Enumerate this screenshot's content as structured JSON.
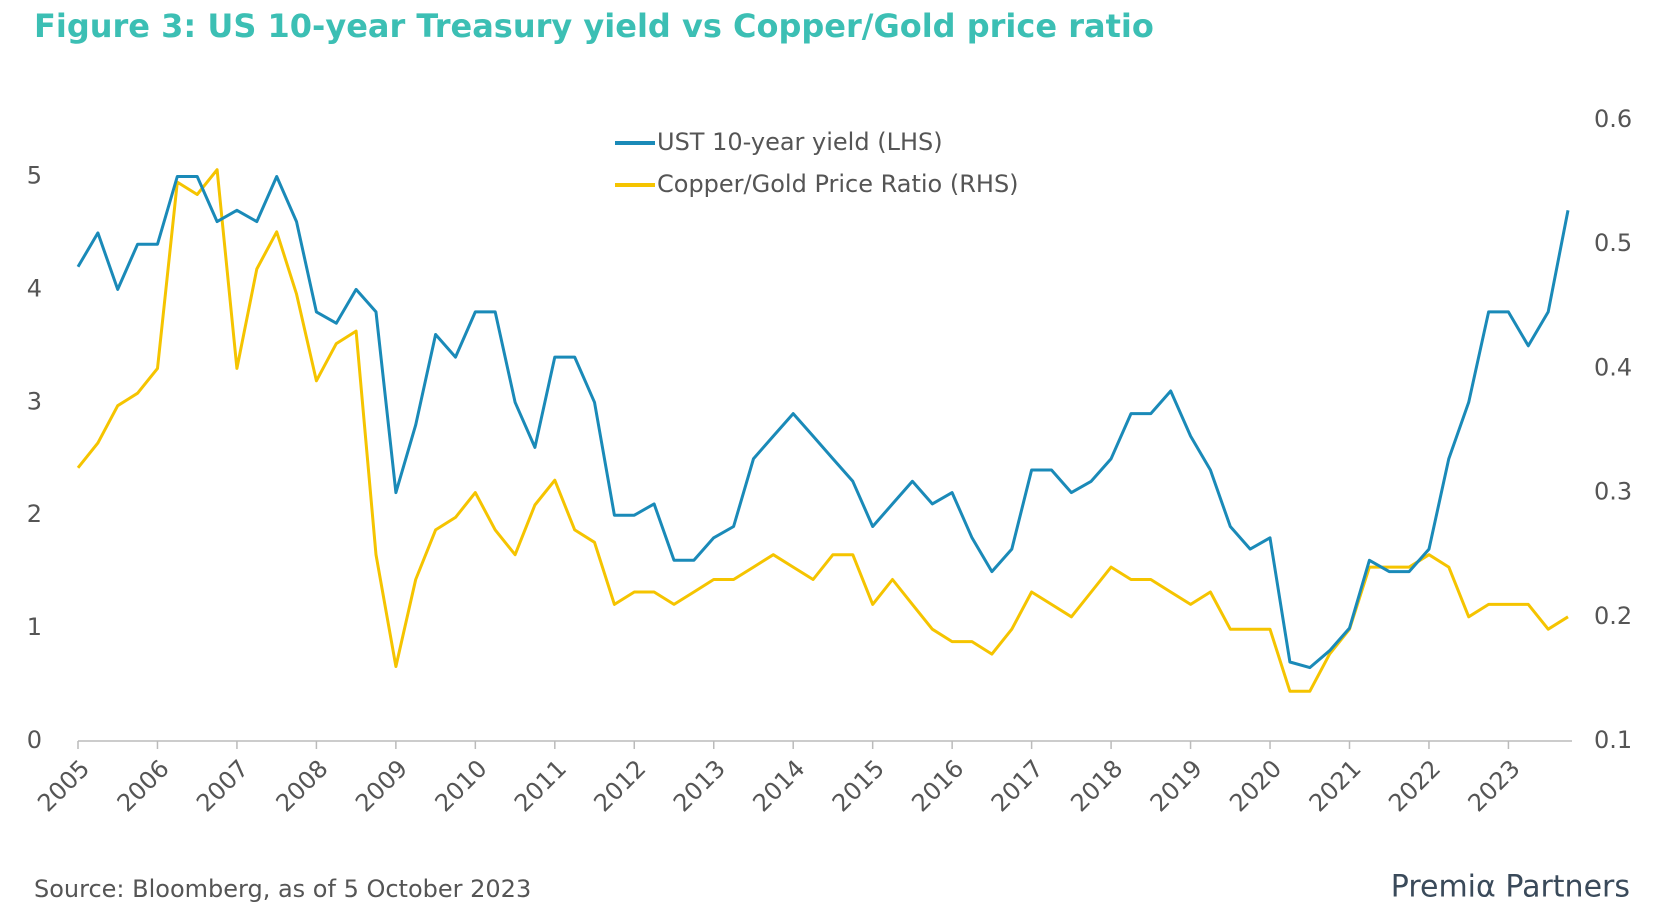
{
  "chart_data": {
    "type": "line",
    "title": "Figure 3: US 10-year Treasury yield vs Copper/Gold price ratio",
    "source": "Source: Bloomberg, as of 5 October 2023",
    "logo": "Premiα Partners",
    "legend": "upper center",
    "x": [
      2005.0,
      2005.25,
      2005.5,
      2005.75,
      2006.0,
      2006.25,
      2006.5,
      2006.75,
      2007.0,
      2007.25,
      2007.5,
      2007.75,
      2008.0,
      2008.25,
      2008.5,
      2008.75,
      2009.0,
      2009.25,
      2009.5,
      2009.75,
      2010.0,
      2010.25,
      2010.5,
      2010.75,
      2011.0,
      2011.25,
      2011.5,
      2011.75,
      2012.0,
      2012.25,
      2012.5,
      2012.75,
      2013.0,
      2013.25,
      2013.5,
      2013.75,
      2014.0,
      2014.25,
      2014.5,
      2014.75,
      2015.0,
      2015.25,
      2015.5,
      2015.75,
      2016.0,
      2016.25,
      2016.5,
      2016.75,
      2017.0,
      2017.25,
      2017.5,
      2017.75,
      2018.0,
      2018.25,
      2018.5,
      2018.75,
      2019.0,
      2019.25,
      2019.5,
      2019.75,
      2020.0,
      2020.25,
      2020.5,
      2020.75,
      2021.0,
      2021.25,
      2021.5,
      2021.75,
      2022.0,
      2022.25,
      2022.5,
      2022.75,
      2023.0,
      2023.25,
      2023.5,
      2023.75
    ],
    "xlim": [
      2005,
      2023.8
    ],
    "xticks": [
      2005,
      2006,
      2007,
      2008,
      2009,
      2010,
      2011,
      2012,
      2013,
      2014,
      2015,
      2016,
      2017,
      2018,
      2019,
      2020,
      2021,
      2022,
      2023
    ],
    "ylim": [
      0,
      5.5
    ],
    "yticks": [
      0,
      1,
      2,
      3,
      4,
      5
    ],
    "y2lim": [
      0.1,
      0.6
    ],
    "y2ticks": [
      0.1,
      0.2,
      0.3,
      0.4,
      0.5,
      0.6
    ],
    "series": [
      {
        "name": "UST 10-year yield (LHS)",
        "color": "#1a8ab8",
        "axis": "y",
        "values": [
          4.2,
          4.5,
          4.0,
          4.4,
          4.4,
          5.0,
          5.0,
          4.6,
          4.7,
          4.6,
          5.0,
          4.6,
          3.8,
          3.7,
          4.0,
          3.8,
          2.2,
          2.8,
          3.6,
          3.4,
          3.8,
          3.8,
          3.0,
          2.6,
          3.4,
          3.4,
          3.0,
          2.0,
          2.0,
          2.1,
          1.6,
          1.6,
          1.8,
          1.9,
          2.5,
          2.7,
          2.9,
          2.7,
          2.5,
          2.3,
          1.9,
          2.1,
          2.3,
          2.1,
          2.2,
          1.8,
          1.5,
          1.7,
          2.4,
          2.4,
          2.2,
          2.3,
          2.5,
          2.9,
          2.9,
          3.1,
          2.7,
          2.4,
          1.9,
          1.7,
          1.8,
          0.7,
          0.65,
          0.8,
          1.0,
          1.6,
          1.5,
          1.5,
          1.7,
          2.5,
          3.0,
          3.8,
          3.8,
          3.5,
          3.8,
          4.7
        ]
      },
      {
        "name": "Copper/Gold Price Ratio (RHS)",
        "color": "#f5c400",
        "axis": "y2",
        "values": [
          0.32,
          0.34,
          0.37,
          0.38,
          0.4,
          0.55,
          0.54,
          0.56,
          0.4,
          0.48,
          0.51,
          0.46,
          0.39,
          0.42,
          0.43,
          0.25,
          0.16,
          0.23,
          0.27,
          0.28,
          0.3,
          0.27,
          0.25,
          0.29,
          0.31,
          0.27,
          0.26,
          0.21,
          0.22,
          0.22,
          0.21,
          0.22,
          0.23,
          0.23,
          0.24,
          0.25,
          0.24,
          0.23,
          0.25,
          0.25,
          0.21,
          0.23,
          0.21,
          0.19,
          0.18,
          0.18,
          0.17,
          0.19,
          0.22,
          0.21,
          0.2,
          0.22,
          0.24,
          0.23,
          0.23,
          0.22,
          0.21,
          0.22,
          0.19,
          0.19,
          0.19,
          0.14,
          0.14,
          0.17,
          0.19,
          0.24,
          0.24,
          0.24,
          0.25,
          0.24,
          0.2,
          0.21,
          0.21,
          0.21,
          0.19,
          0.2
        ]
      }
    ]
  }
}
